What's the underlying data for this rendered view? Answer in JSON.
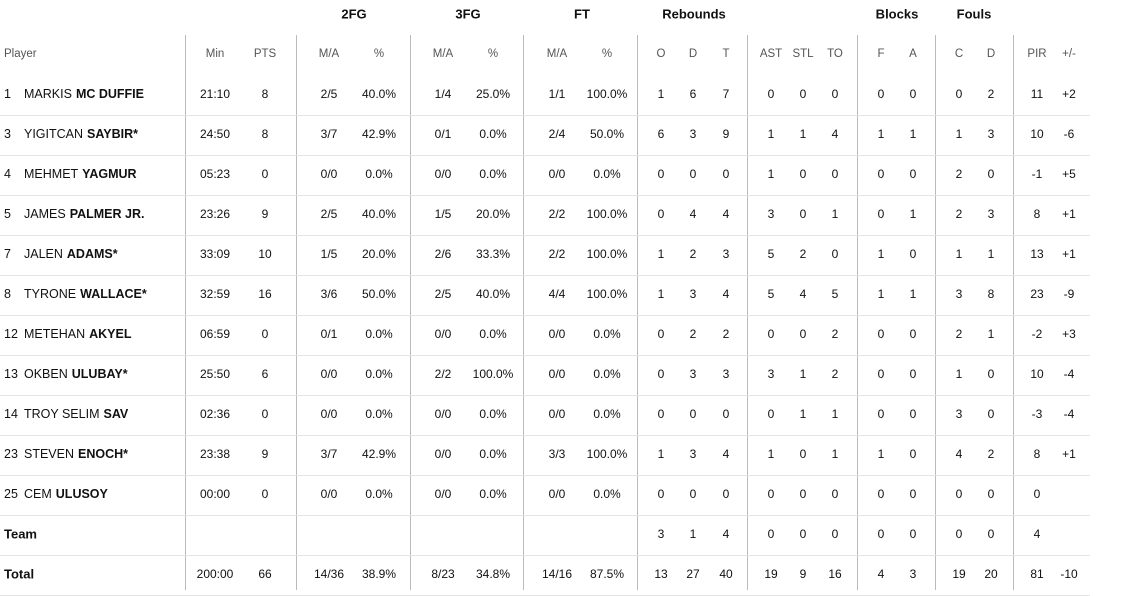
{
  "groups": [
    "2FG",
    "3FG",
    "FT",
    "Rebounds",
    "Blocks",
    "Fouls"
  ],
  "columns": [
    "Player",
    "Min",
    "PTS",
    "M/A",
    "%",
    "M/A",
    "%",
    "M/A",
    "%",
    "O",
    "D",
    "T",
    "AST",
    "STL",
    "TO",
    "F",
    "A",
    "C",
    "D",
    "PIR",
    "+/-"
  ],
  "rows": [
    {
      "number": "1",
      "first": "MARKIS",
      "last": "MC DUFFIE",
      "cells": [
        "21:10",
        "8",
        "2/5",
        "40.0%",
        "1/4",
        "25.0%",
        "1/1",
        "100.0%",
        "1",
        "6",
        "7",
        "0",
        "0",
        "0",
        "0",
        "0",
        "0",
        "2",
        "11",
        "+2"
      ]
    },
    {
      "number": "3",
      "first": "YIGITCAN",
      "last": "SAYBIR*",
      "cells": [
        "24:50",
        "8",
        "3/7",
        "42.9%",
        "0/1",
        "0.0%",
        "2/4",
        "50.0%",
        "6",
        "3",
        "9",
        "1",
        "1",
        "4",
        "1",
        "1",
        "1",
        "3",
        "10",
        "-6"
      ]
    },
    {
      "number": "4",
      "first": "MEHMET",
      "last": "YAGMUR",
      "cells": [
        "05:23",
        "0",
        "0/0",
        "0.0%",
        "0/0",
        "0.0%",
        "0/0",
        "0.0%",
        "0",
        "0",
        "0",
        "1",
        "0",
        "0",
        "0",
        "0",
        "2",
        "0",
        "-1",
        "+5"
      ]
    },
    {
      "number": "5",
      "first": "JAMES",
      "last": "PALMER JR.",
      "cells": [
        "23:26",
        "9",
        "2/5",
        "40.0%",
        "1/5",
        "20.0%",
        "2/2",
        "100.0%",
        "0",
        "4",
        "4",
        "3",
        "0",
        "1",
        "0",
        "1",
        "2",
        "3",
        "8",
        "+1"
      ]
    },
    {
      "number": "7",
      "first": "JALEN",
      "last": "ADAMS*",
      "cells": [
        "33:09",
        "10",
        "1/5",
        "20.0%",
        "2/6",
        "33.3%",
        "2/2",
        "100.0%",
        "1",
        "2",
        "3",
        "5",
        "2",
        "0",
        "1",
        "0",
        "1",
        "1",
        "13",
        "+1"
      ]
    },
    {
      "number": "8",
      "first": "TYRONE",
      "last": "WALLACE*",
      "cells": [
        "32:59",
        "16",
        "3/6",
        "50.0%",
        "2/5",
        "40.0%",
        "4/4",
        "100.0%",
        "1",
        "3",
        "4",
        "5",
        "4",
        "5",
        "1",
        "1",
        "3",
        "8",
        "23",
        "-9"
      ]
    },
    {
      "number": "12",
      "first": "METEHAN",
      "last": "AKYEL",
      "cells": [
        "06:59",
        "0",
        "0/1",
        "0.0%",
        "0/0",
        "0.0%",
        "0/0",
        "0.0%",
        "0",
        "2",
        "2",
        "0",
        "0",
        "2",
        "0",
        "0",
        "2",
        "1",
        "-2",
        "+3"
      ]
    },
    {
      "number": "13",
      "first": "OKBEN",
      "last": "ULUBAY*",
      "cells": [
        "25:50",
        "6",
        "0/0",
        "0.0%",
        "2/2",
        "100.0%",
        "0/0",
        "0.0%",
        "0",
        "3",
        "3",
        "3",
        "1",
        "2",
        "0",
        "0",
        "1",
        "0",
        "10",
        "-4"
      ]
    },
    {
      "number": "14",
      "first": "TROY SELIM",
      "last": "SAV",
      "cells": [
        "02:36",
        "0",
        "0/0",
        "0.0%",
        "0/0",
        "0.0%",
        "0/0",
        "0.0%",
        "0",
        "0",
        "0",
        "0",
        "1",
        "1",
        "0",
        "0",
        "3",
        "0",
        "-3",
        "-4"
      ]
    },
    {
      "number": "23",
      "first": "STEVEN",
      "last": "ENOCH*",
      "cells": [
        "23:38",
        "9",
        "3/7",
        "42.9%",
        "0/0",
        "0.0%",
        "3/3",
        "100.0%",
        "1",
        "3",
        "4",
        "1",
        "0",
        "1",
        "1",
        "0",
        "4",
        "2",
        "8",
        "+1"
      ]
    },
    {
      "number": "25",
      "first": "CEM",
      "last": "ULUSOY",
      "cells": [
        "00:00",
        "0",
        "0/0",
        "0.0%",
        "0/0",
        "0.0%",
        "0/0",
        "0.0%",
        "0",
        "0",
        "0",
        "0",
        "0",
        "0",
        "0",
        "0",
        "0",
        "0",
        "0",
        null
      ]
    }
  ],
  "team": {
    "label": "Team",
    "cells": [
      null,
      null,
      null,
      null,
      null,
      null,
      null,
      null,
      "3",
      "1",
      "4",
      "0",
      "0",
      "0",
      "0",
      "0",
      "0",
      "0",
      "4",
      null
    ]
  },
  "total": {
    "label": "Total",
    "cells": [
      "200:00",
      "66",
      "14/36",
      "38.9%",
      "8/23",
      "34.8%",
      "14/16",
      "87.5%",
      "13",
      "27",
      "40",
      "19",
      "9",
      "16",
      "4",
      "3",
      "19",
      "20",
      "81",
      "-10"
    ]
  }
}
